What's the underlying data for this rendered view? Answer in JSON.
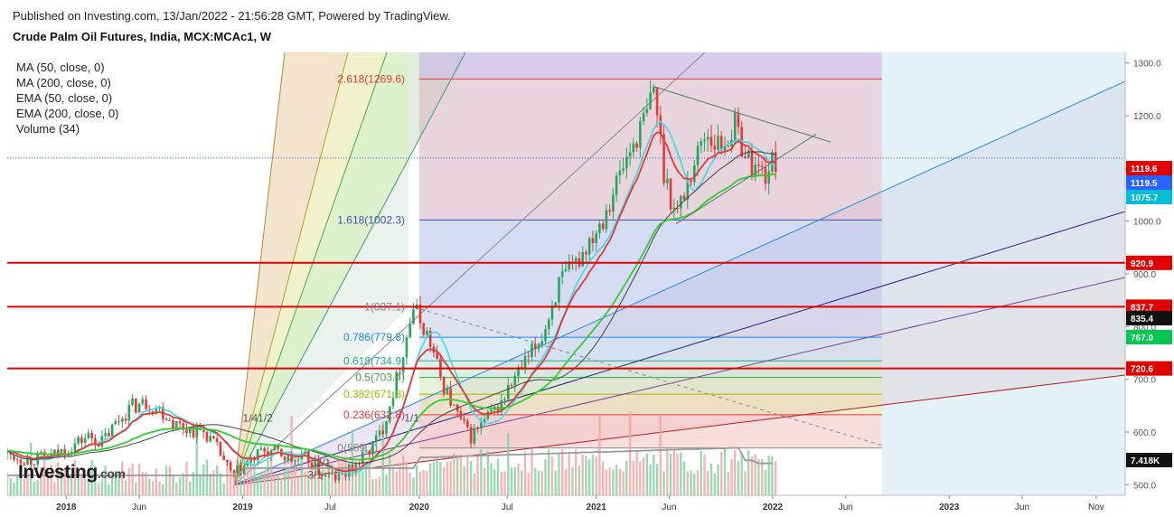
{
  "header": {
    "published": "Published on Investing.com, 13/Jan/2022 - 21:56:28 GMT, Powered by TradingView.",
    "symbol": "Crude Palm Oil Futures, India, MCX:MCAc1, W"
  },
  "legend": [
    "MA (50, close, 0)",
    "MA (200, close, 0)",
    "EMA (50, close, 0)",
    "EMA (200, close, 0)",
    "Volume (34)"
  ],
  "logo": {
    "main": "Investing",
    "suffix": ".com"
  },
  "chart_data": {
    "type": "candlestick",
    "timeframe": "W",
    "ylim": [
      480,
      1320
    ],
    "y_ticks": [
      500,
      600,
      700,
      800,
      900,
      1000,
      1100,
      1200,
      1300
    ],
    "y_tick_labels": [
      "500.0",
      "600.0",
      "700.0",
      "800.0",
      "900.0",
      "1000.0",
      "1100.0",
      "1200.0",
      "1300.0"
    ],
    "x_range": [
      "2017-09-01",
      "2023-12-31"
    ],
    "x_ticks": [
      {
        "date": "2018-01-01",
        "label": "2018"
      },
      {
        "date": "2018-06-01",
        "label": "Jun"
      },
      {
        "date": "2019-01-01",
        "label": "2019"
      },
      {
        "date": "2019-07-01",
        "label": "Jul"
      },
      {
        "date": "2020-01-01",
        "label": "2020"
      },
      {
        "date": "2020-07-01",
        "label": "Jul"
      },
      {
        "date": "2021-01-01",
        "label": "2021"
      },
      {
        "date": "2021-06-01",
        "label": "Jun"
      },
      {
        "date": "2022-01-01",
        "label": "2022"
      },
      {
        "date": "2022-06-01",
        "label": "Jun"
      },
      {
        "date": "2023-01-01",
        "label": "2023"
      },
      {
        "date": "2023-06-01",
        "label": "Jun"
      },
      {
        "date": "2023-11-01",
        "label": "Nov"
      }
    ],
    "close_series": [
      [
        "2017-09-01",
        558
      ],
      [
        "2017-10-15",
        548
      ],
      [
        "2017-12-01",
        553
      ],
      [
        "2018-01-15",
        575
      ],
      [
        "2018-02-15",
        592
      ],
      [
        "2018-03-15",
        580
      ],
      [
        "2018-04-15",
        618
      ],
      [
        "2018-05-15",
        648
      ],
      [
        "2018-06-15",
        655
      ],
      [
        "2018-07-15",
        642
      ],
      [
        "2018-08-15",
        615
      ],
      [
        "2018-09-15",
        605
      ],
      [
        "2018-10-15",
        600
      ],
      [
        "2018-11-15",
        560
      ],
      [
        "2018-12-10",
        515
      ],
      [
        "2019-01-10",
        540
      ],
      [
        "2019-02-15",
        565
      ],
      [
        "2019-03-15",
        560
      ],
      [
        "2019-04-15",
        545
      ],
      [
        "2019-05-15",
        550
      ],
      [
        "2019-06-15",
        520
      ],
      [
        "2019-07-15",
        512
      ],
      [
        "2019-08-15",
        530
      ],
      [
        "2019-09-15",
        560
      ],
      [
        "2019-10-15",
        600
      ],
      [
        "2019-11-15",
        700
      ],
      [
        "2019-12-20",
        837
      ],
      [
        "2020-01-20",
        780
      ],
      [
        "2020-02-15",
        700
      ],
      [
        "2020-03-15",
        640
      ],
      [
        "2020-04-15",
        590
      ],
      [
        "2020-05-15",
        620
      ],
      [
        "2020-06-15",
        650
      ],
      [
        "2020-07-15",
        700
      ],
      [
        "2020-08-15",
        740
      ],
      [
        "2020-09-15",
        790
      ],
      [
        "2020-10-15",
        880
      ],
      [
        "2020-11-15",
        910
      ],
      [
        "2020-12-15",
        960
      ],
      [
        "2021-01-15",
        1010
      ],
      [
        "2021-02-15",
        1080
      ],
      [
        "2021-03-15",
        1140
      ],
      [
        "2021-04-15",
        1200
      ],
      [
        "2021-05-01",
        1255
      ],
      [
        "2021-05-20",
        1100
      ],
      [
        "2021-06-15",
        1010
      ],
      [
        "2021-07-15",
        1090
      ],
      [
        "2021-08-15",
        1170
      ],
      [
        "2021-09-15",
        1140
      ],
      [
        "2021-10-15",
        1180
      ],
      [
        "2021-11-15",
        1110
      ],
      [
        "2021-12-15",
        1090
      ],
      [
        "2022-01-13",
        1120
      ]
    ],
    "volume_max": 34,
    "moving_averages": [
      {
        "name": "MA (50, close, 0)"
      },
      {
        "name": "MA (200, close, 0)"
      },
      {
        "name": "EMA (50, close, 0)"
      },
      {
        "name": "EMA (200, close, 0)"
      }
    ],
    "fib_retracement": {
      "x_start": "2020-01-01",
      "x_end": "2022-08-15",
      "levels": [
        {
          "ratio": "0",
          "price": 569.7,
          "label": "0(569.7)",
          "color": "#888888"
        },
        {
          "ratio": "0.236",
          "price": 632.8,
          "label": "0.236(632.8)",
          "color": "#e53935"
        },
        {
          "ratio": "0.382",
          "price": 671.8,
          "label": "0.382(671.8)",
          "color": "#a6b800"
        },
        {
          "ratio": "0.5",
          "price": 703.4,
          "label": "0.5(703.4)",
          "color": "#43a047"
        },
        {
          "ratio": "0.618",
          "price": 734.9,
          "label": "0.618(734.9)",
          "color": "#26a69a"
        },
        {
          "ratio": "0.786",
          "price": 779.8,
          "label": "0.786(779.8)",
          "color": "#1e88e5"
        },
        {
          "ratio": "1",
          "price": 837.1,
          "label": "1(837.1)",
          "color": "#888888"
        },
        {
          "ratio": "1.618",
          "price": 1002.3,
          "label": "1.618(1002.3)",
          "color": "#3f51b5"
        },
        {
          "ratio": "2.618",
          "price": 1269.6,
          "label": "2.618(1269.6)",
          "color": "#e53935"
        }
      ]
    },
    "gann_fan": {
      "origin": [
        "2018-12-15",
        500
      ],
      "labels": [
        {
          "text": "1/1",
          "date": "2019-12-01",
          "price": 620
        },
        {
          "text": "2/1",
          "date": "2019-06-01",
          "price": 535
        },
        {
          "text": "3/1",
          "date": "2019-05-15",
          "price": 512
        },
        {
          "text": "1/2",
          "date": "2019-02-01",
          "price": 620
        },
        {
          "text": "1/4",
          "date": "2019-01-01",
          "price": 620
        }
      ]
    },
    "horizontal_levels": [
      {
        "price": 920.9,
        "label": "920.9",
        "color": "#e00000"
      },
      {
        "price": 837.7,
        "label": "837.7",
        "color": "#e00000"
      },
      {
        "price": 720.6,
        "label": "720.6",
        "color": "#e00000"
      }
    ],
    "price_tags": [
      {
        "price": 1119.6,
        "label": "1119.6",
        "color": "#e00000"
      },
      {
        "price": 1119.5,
        "label": "1119.5",
        "color": "#2962ff"
      },
      {
        "price": 1075.7,
        "label": "1075.7",
        "color": "#00bcd4"
      },
      {
        "price": 835.4,
        "label": "835.4",
        "color": "#111111"
      },
      {
        "price": 767.0,
        "label": "767.0",
        "color": "#00c853"
      },
      {
        "price": 505,
        "label": "7.418K",
        "color": "#111111"
      }
    ],
    "current_price": 1119.6
  }
}
